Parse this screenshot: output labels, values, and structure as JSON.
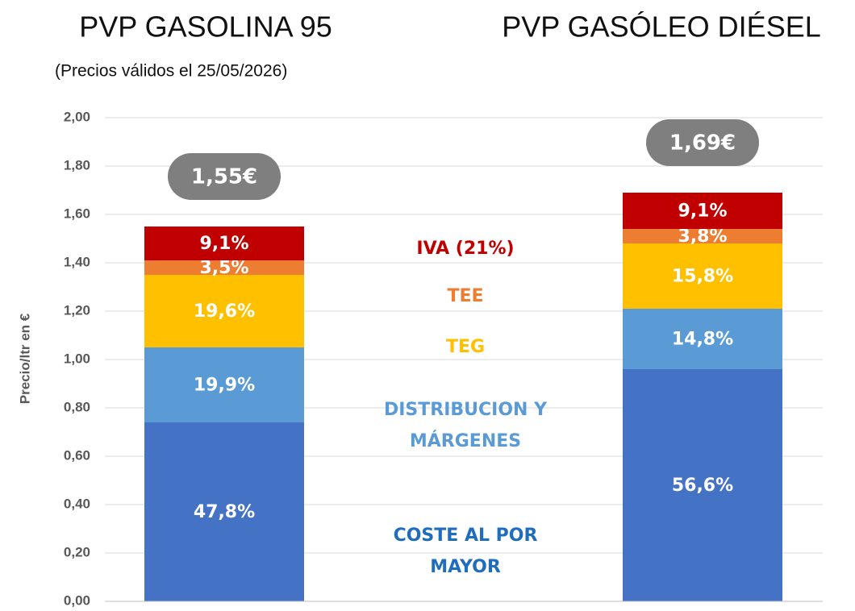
{
  "chart_data": {
    "type": "stacked_bar",
    "titles": [
      "PVP GASOLINA 95",
      "PVP GASÓLEO DIÉSEL"
    ],
    "subtitle": "(Precios válidos el 25/05/2026)",
    "y_label": "Precio/ltr en €",
    "categories": [
      null,
      null
    ],
    "totals": [
      1.55,
      1.69
    ],
    "total_labels": [
      "1,55€",
      "1,69€"
    ],
    "series": [
      {
        "name": "COSTE AL POR MAYOR",
        "color": "#4472c4",
        "legend_color": "#1f6dbd",
        "values": [
          0.74,
          0.96
        ],
        "share_labels": [
          "47,8%",
          "56,6%"
        ]
      },
      {
        "name": "DISTRIBUCION Y MÁRGENES",
        "color": "#5b9bd5",
        "legend_color": "#5b9bd5",
        "values": [
          0.31,
          0.25
        ],
        "share_labels": [
          "19,9%",
          "14,8%"
        ]
      },
      {
        "name": "TEG",
        "color": "#ffc000",
        "legend_color": "#ffc000",
        "values": [
          0.3,
          0.27
        ],
        "share_labels": [
          "19,6%",
          "15,8%"
        ]
      },
      {
        "name": "TEE",
        "color": "#ed7d31",
        "legend_color": "#ed7d31",
        "values": [
          0.06,
          0.06
        ],
        "share_labels": [
          "3,5%",
          "3,8%"
        ]
      },
      {
        "name": "IVA (21%)",
        "color": "#c00000",
        "legend_color": "#c00000",
        "values": [
          0.14,
          0.15
        ],
        "share_labels": [
          "9,1%",
          "9,1%"
        ]
      }
    ],
    "ylim": [
      0,
      2
    ],
    "yticks": [
      {
        "value": 0,
        "label": "0,00"
      },
      {
        "value": 0.2,
        "label": "0,20"
      },
      {
        "value": 0.4,
        "label": "0,40"
      },
      {
        "value": 0.6,
        "label": "0,60"
      },
      {
        "value": 0.8,
        "label": "0,80"
      },
      {
        "value": 1,
        "label": "1,00"
      },
      {
        "value": 1.2,
        "label": "1,20"
      },
      {
        "value": 1.4,
        "label": "1,40"
      },
      {
        "value": 1.6,
        "label": "1,60"
      },
      {
        "value": 1.8,
        "label": "1,80"
      },
      {
        "value": 2,
        "label": "2,00"
      }
    ],
    "grid": true
  }
}
